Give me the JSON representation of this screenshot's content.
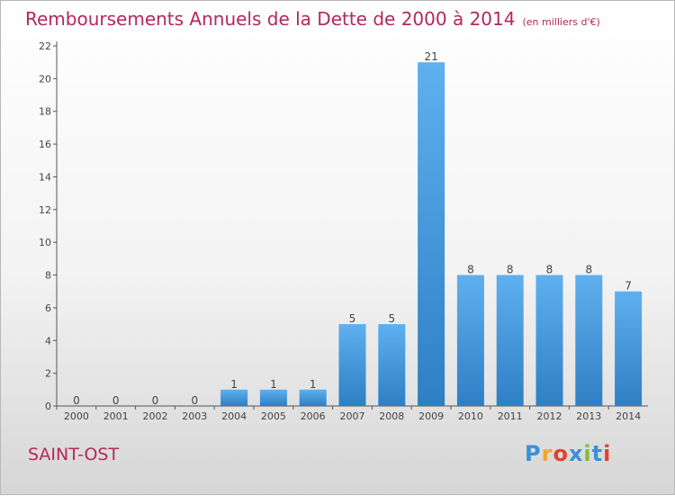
{
  "title": "Remboursements Annuels de la Dette de 2000 à 2014",
  "unit": "(en milliers d'€)",
  "place": "SAINT-OST",
  "logo": {
    "letters": [
      "P",
      "r",
      "o",
      "x",
      "i",
      "t",
      "i"
    ],
    "colors": [
      "#3a8fd8",
      "#f2a52a",
      "#e0432f",
      "#3a8fd8",
      "#7cbf3a",
      "#3a8fd8",
      "#e0432f"
    ]
  },
  "colors": {
    "bar_light": "#5eb0ef",
    "bar_dark": "#2e7fc4",
    "title": "#b6275b"
  },
  "chart_data": {
    "type": "bar",
    "categories": [
      "2000",
      "2001",
      "2002",
      "2003",
      "2004",
      "2005",
      "2006",
      "2007",
      "2008",
      "2009",
      "2010",
      "2011",
      "2012",
      "2013",
      "2014"
    ],
    "values": [
      0,
      0,
      0,
      0,
      1,
      1,
      1,
      5,
      5,
      21,
      8,
      8,
      8,
      8,
      7
    ],
    "ylim": [
      0,
      22
    ],
    "yticks": [
      0,
      2,
      4,
      6,
      8,
      10,
      12,
      14,
      16,
      18,
      20,
      22
    ],
    "grid": false,
    "title": "Remboursements Annuels de la Dette de 2000 à 2014"
  }
}
